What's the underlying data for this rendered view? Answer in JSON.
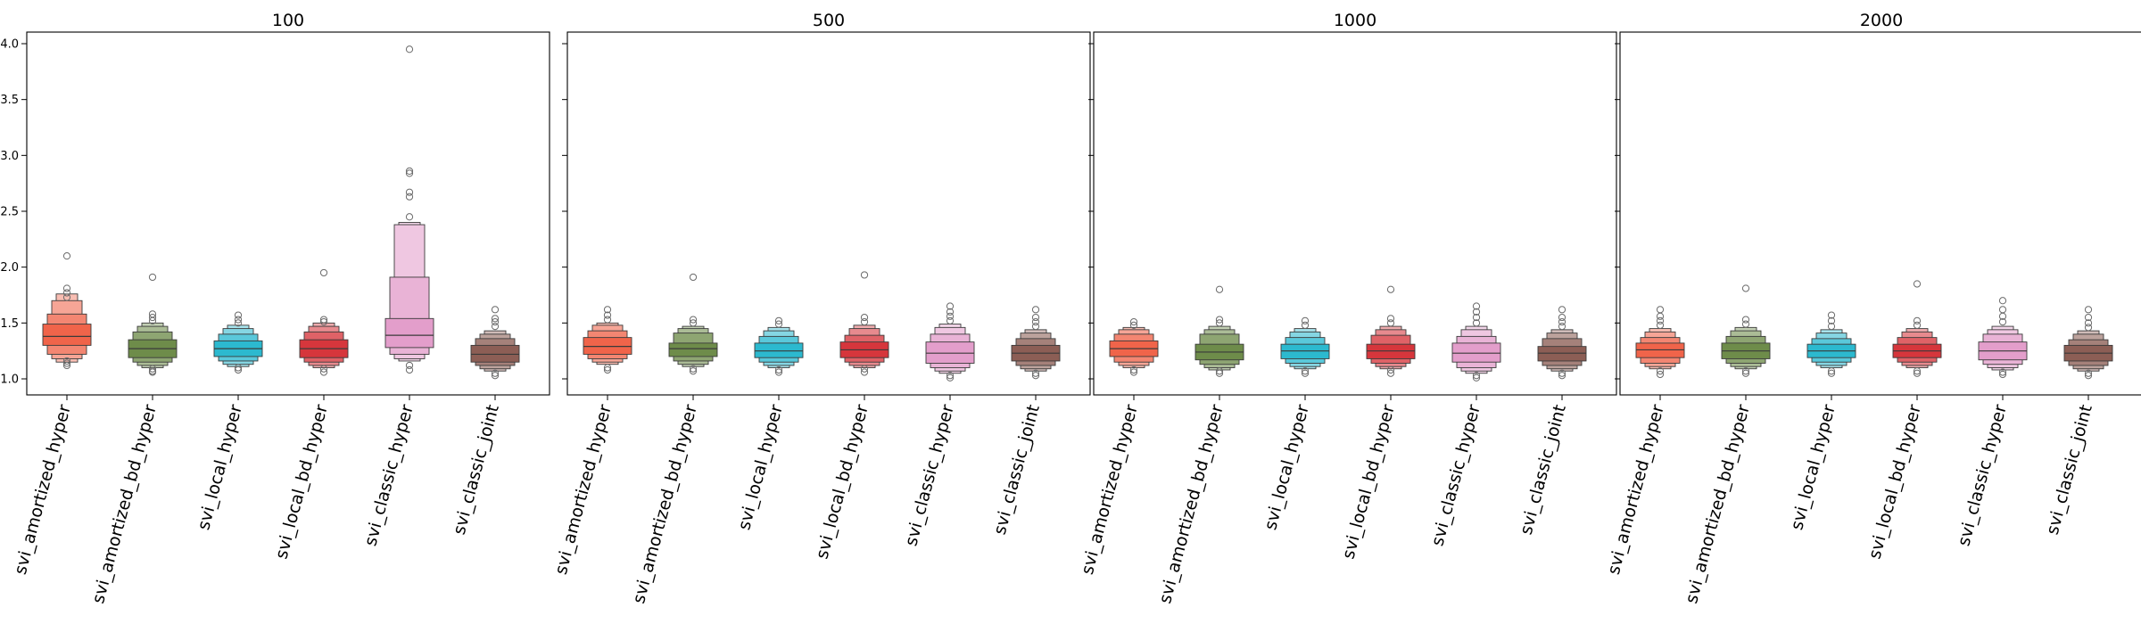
{
  "colors": {
    "svi_amortized_hyper": "#f0644a",
    "svi_amortized_bd_hyper": "#6e8c4a",
    "svi_local_hyper": "#2cb9cf",
    "svi_local_bd_hyper": "#d6363c",
    "svi_classic_hyper": "#e39ecb",
    "svi_classic_joint": "#8c5e55"
  },
  "chart_data": [
    {
      "type": "boxen",
      "title": "100",
      "xlabel": "",
      "ylabel": "",
      "ylim": [
        0.87,
        4.08
      ],
      "yticks": [
        "1.0",
        "1.5",
        "2.0",
        "2.5",
        "3.0",
        "3.5",
        "4.0"
      ],
      "categories": [
        "svi_amortized_hyper",
        "svi_amortized_bd_hyper",
        "svi_local_hyper",
        "svi_local_bd_hyper",
        "svi_classic_hyper",
        "svi_classic_joint"
      ],
      "series": [
        {
          "median": 1.38,
          "levels": [
            [
              1.3,
              1.49
            ],
            [
              1.22,
              1.58
            ],
            [
              1.18,
              1.7
            ],
            [
              1.15,
              1.76
            ]
          ],
          "outliers": [
            1.12,
            1.14,
            1.16,
            1.73,
            1.77,
            1.81,
            2.1
          ]
        },
        {
          "median": 1.27,
          "levels": [
            [
              1.19,
              1.35
            ],
            [
              1.15,
              1.42
            ],
            [
              1.12,
              1.47
            ],
            [
              1.1,
              1.5
            ]
          ],
          "outliers": [
            1.06,
            1.07,
            1.09,
            1.52,
            1.55,
            1.58,
            1.91
          ]
        },
        {
          "median": 1.27,
          "levels": [
            [
              1.2,
              1.34
            ],
            [
              1.16,
              1.4
            ],
            [
              1.13,
              1.45
            ],
            [
              1.11,
              1.48
            ]
          ],
          "outliers": [
            1.08,
            1.1,
            1.5,
            1.53,
            1.57
          ]
        },
        {
          "median": 1.27,
          "levels": [
            [
              1.19,
              1.35
            ],
            [
              1.15,
              1.42
            ],
            [
              1.12,
              1.47
            ],
            [
              1.1,
              1.5
            ]
          ],
          "outliers": [
            1.06,
            1.09,
            1.51,
            1.53,
            1.95
          ]
        },
        {
          "median": 1.39,
          "levels": [
            [
              1.28,
              1.54
            ],
            [
              1.22,
              1.91
            ],
            [
              1.18,
              2.38
            ],
            [
              1.16,
              2.4
            ]
          ],
          "outliers": [
            1.08,
            1.12,
            2.45,
            2.63,
            2.67,
            2.84,
            2.86,
            3.95
          ]
        },
        {
          "median": 1.22,
          "levels": [
            [
              1.15,
              1.3
            ],
            [
              1.12,
              1.36
            ],
            [
              1.09,
              1.4
            ],
            [
              1.07,
              1.43
            ]
          ],
          "outliers": [
            1.03,
            1.05,
            1.47,
            1.51,
            1.54,
            1.62
          ]
        }
      ]
    },
    {
      "type": "boxen",
      "title": "500",
      "xlabel": "",
      "ylabel": "",
      "ylim": [
        0.87,
        4.08
      ],
      "yticks": [
        "1.0",
        "1.5",
        "2.0",
        "2.5",
        "3.0",
        "3.5",
        "4.0"
      ],
      "categories": [
        "svi_amortized_hyper",
        "svi_amortized_bd_hyper",
        "svi_local_hyper",
        "svi_local_bd_hyper",
        "svi_classic_hyper",
        "svi_classic_joint"
      ],
      "series": [
        {
          "median": 1.29,
          "levels": [
            [
              1.22,
              1.37
            ],
            [
              1.18,
              1.43
            ],
            [
              1.15,
              1.48
            ],
            [
              1.13,
              1.5
            ]
          ],
          "outliers": [
            1.08,
            1.1,
            1.53,
            1.57,
            1.62
          ]
        },
        {
          "median": 1.27,
          "levels": [
            [
              1.2,
              1.32
            ],
            [
              1.16,
              1.41
            ],
            [
              1.13,
              1.45
            ],
            [
              1.11,
              1.47
            ]
          ],
          "outliers": [
            1.07,
            1.09,
            1.5,
            1.53,
            1.91
          ]
        },
        {
          "median": 1.25,
          "levels": [
            [
              1.19,
              1.32
            ],
            [
              1.15,
              1.38
            ],
            [
              1.12,
              1.43
            ],
            [
              1.1,
              1.46
            ]
          ],
          "outliers": [
            1.06,
            1.08,
            1.49,
            1.52
          ]
        },
        {
          "median": 1.26,
          "levels": [
            [
              1.19,
              1.33
            ],
            [
              1.15,
              1.39
            ],
            [
              1.12,
              1.45
            ],
            [
              1.1,
              1.48
            ]
          ],
          "outliers": [
            1.06,
            1.09,
            1.51,
            1.55,
            1.93
          ]
        },
        {
          "median": 1.23,
          "levels": [
            [
              1.14,
              1.33
            ],
            [
              1.1,
              1.4
            ],
            [
              1.07,
              1.46
            ],
            [
              1.05,
              1.49
            ]
          ],
          "outliers": [
            1.01,
            1.03,
            1.52,
            1.56,
            1.6,
            1.65
          ]
        },
        {
          "median": 1.23,
          "levels": [
            [
              1.16,
              1.3
            ],
            [
              1.12,
              1.36
            ],
            [
              1.09,
              1.41
            ],
            [
              1.07,
              1.44
            ]
          ],
          "outliers": [
            1.03,
            1.05,
            1.47,
            1.51,
            1.55,
            1.62
          ]
        }
      ]
    },
    {
      "type": "boxen",
      "title": "1000",
      "xlabel": "",
      "ylabel": "",
      "ylim": [
        0.87,
        4.08
      ],
      "yticks": [
        "1.0",
        "1.5",
        "2.0",
        "2.5",
        "3.0",
        "3.5",
        "4.0"
      ],
      "categories": [
        "svi_amortized_hyper",
        "svi_amortized_bd_hyper",
        "svi_local_hyper",
        "svi_local_bd_hyper",
        "svi_classic_hyper",
        "svi_classic_joint"
      ],
      "series": [
        {
          "median": 1.27,
          "levels": [
            [
              1.2,
              1.34
            ],
            [
              1.15,
              1.4
            ],
            [
              1.12,
              1.44
            ],
            [
              1.1,
              1.46
            ]
          ],
          "outliers": [
            1.06,
            1.08,
            1.48,
            1.51
          ]
        },
        {
          "median": 1.24,
          "levels": [
            [
              1.17,
              1.31
            ],
            [
              1.13,
              1.4
            ],
            [
              1.1,
              1.44
            ],
            [
              1.08,
              1.47
            ]
          ],
          "outliers": [
            1.05,
            1.07,
            1.5,
            1.53,
            1.8
          ]
        },
        {
          "median": 1.25,
          "levels": [
            [
              1.18,
              1.31
            ],
            [
              1.14,
              1.37
            ],
            [
              1.11,
              1.42
            ],
            [
              1.09,
              1.45
            ]
          ],
          "outliers": [
            1.05,
            1.07,
            1.48,
            1.52
          ]
        },
        {
          "median": 1.25,
          "levels": [
            [
              1.18,
              1.31
            ],
            [
              1.14,
              1.39
            ],
            [
              1.11,
              1.44
            ],
            [
              1.09,
              1.47
            ]
          ],
          "outliers": [
            1.05,
            1.08,
            1.5,
            1.54,
            1.8
          ]
        },
        {
          "median": 1.23,
          "levels": [
            [
              1.15,
              1.32
            ],
            [
              1.1,
              1.38
            ],
            [
              1.07,
              1.44
            ],
            [
              1.05,
              1.47
            ]
          ],
          "outliers": [
            1.01,
            1.03,
            1.5,
            1.55,
            1.6,
            1.65
          ]
        },
        {
          "median": 1.23,
          "levels": [
            [
              1.16,
              1.29
            ],
            [
              1.12,
              1.36
            ],
            [
              1.09,
              1.41
            ],
            [
              1.07,
              1.44
            ]
          ],
          "outliers": [
            1.03,
            1.05,
            1.47,
            1.51,
            1.55,
            1.62
          ]
        }
      ]
    },
    {
      "type": "boxen",
      "title": "2000",
      "xlabel": "",
      "ylabel": "",
      "ylim": [
        0.87,
        4.08
      ],
      "yticks": [
        "1.0",
        "1.5",
        "2.0",
        "2.5",
        "3.0",
        "3.5",
        "4.0"
      ],
      "categories": [
        "svi_amortized_hyper",
        "svi_amortized_bd_hyper",
        "svi_local_hyper",
        "svi_local_bd_hyper",
        "svi_classic_hyper",
        "svi_classic_joint"
      ],
      "series": [
        {
          "median": 1.26,
          "levels": [
            [
              1.19,
              1.32
            ],
            [
              1.14,
              1.37
            ],
            [
              1.11,
              1.42
            ],
            [
              1.09,
              1.45
            ]
          ],
          "outliers": [
            1.04,
            1.07,
            1.48,
            1.52,
            1.56,
            1.62
          ]
        },
        {
          "median": 1.25,
          "levels": [
            [
              1.18,
              1.32
            ],
            [
              1.14,
              1.38
            ],
            [
              1.11,
              1.43
            ],
            [
              1.09,
              1.46
            ]
          ],
          "outliers": [
            1.05,
            1.07,
            1.49,
            1.53,
            1.81
          ]
        },
        {
          "median": 1.25,
          "levels": [
            [
              1.19,
              1.31
            ],
            [
              1.15,
              1.36
            ],
            [
              1.12,
              1.41
            ],
            [
              1.1,
              1.44
            ]
          ],
          "outliers": [
            1.05,
            1.07,
            1.47,
            1.52,
            1.57
          ]
        },
        {
          "median": 1.25,
          "levels": [
            [
              1.19,
              1.31
            ],
            [
              1.15,
              1.37
            ],
            [
              1.12,
              1.42
            ],
            [
              1.1,
              1.45
            ]
          ],
          "outliers": [
            1.05,
            1.07,
            1.48,
            1.52,
            1.85
          ]
        },
        {
          "median": 1.25,
          "levels": [
            [
              1.17,
              1.33
            ],
            [
              1.13,
              1.4
            ],
            [
              1.1,
              1.44
            ],
            [
              1.08,
              1.47
            ]
          ],
          "outliers": [
            1.04,
            1.06,
            1.51,
            1.56,
            1.62,
            1.7
          ]
        },
        {
          "median": 1.23,
          "levels": [
            [
              1.16,
              1.3
            ],
            [
              1.12,
              1.35
            ],
            [
              1.09,
              1.4
            ],
            [
              1.07,
              1.43
            ]
          ],
          "outliers": [
            1.03,
            1.05,
            1.46,
            1.5,
            1.55,
            1.62
          ]
        }
      ]
    }
  ]
}
